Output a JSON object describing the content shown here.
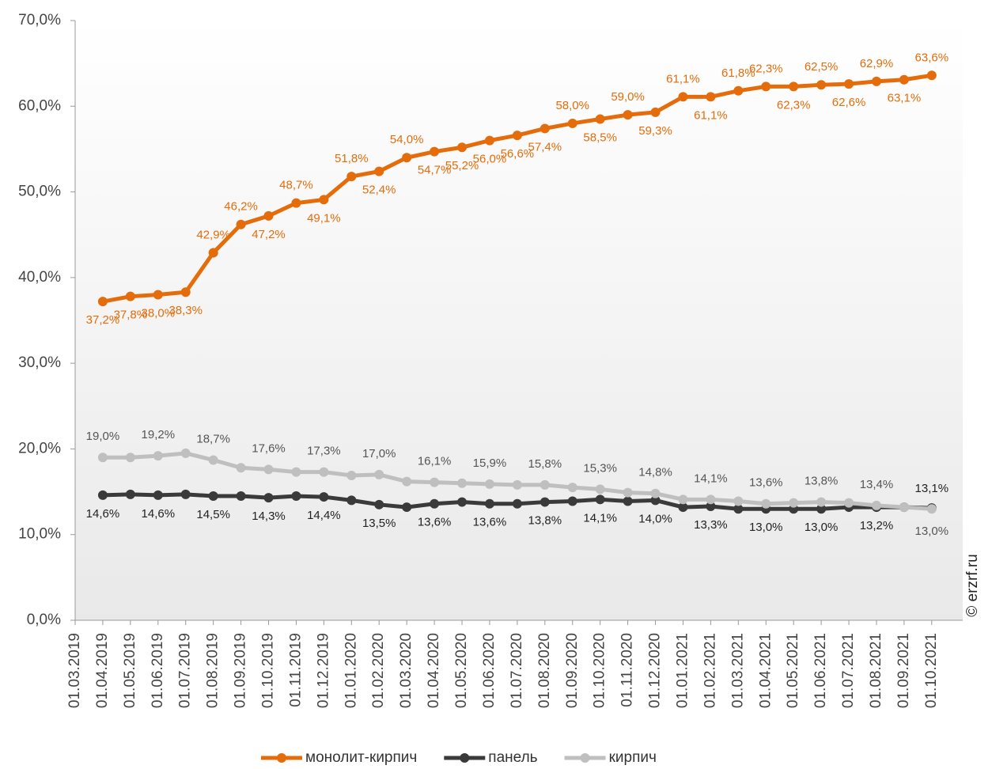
{
  "chart_data": {
    "type": "line",
    "categories": [
      "01.03.2019",
      "01.04.2019",
      "01.05.2019",
      "01.06.2019",
      "01.07.2019",
      "01.08.2019",
      "01.09.2019",
      "01.10.2019",
      "01.11.2019",
      "01.12.2019",
      "01.01.2020",
      "01.02.2020",
      "01.03.2020",
      "01.04.2020",
      "01.05.2020",
      "01.06.2020",
      "01.07.2020",
      "01.08.2020",
      "01.09.2020",
      "01.10.2020",
      "01.11.2020",
      "01.12.2020",
      "01.01.2021",
      "01.02.2021",
      "01.03.2021",
      "01.04.2021",
      "01.05.2021",
      "01.06.2021",
      "01.07.2021",
      "01.08.2021",
      "01.09.2021",
      "01.10.2021"
    ],
    "series": [
      {
        "name": "монолит-кирпич",
        "color": "#e46c0a",
        "values": [
          null,
          37.2,
          37.8,
          38.0,
          38.3,
          42.9,
          46.2,
          47.2,
          48.7,
          49.1,
          51.8,
          52.4,
          54.0,
          54.7,
          55.2,
          56.0,
          56.6,
          57.4,
          58.0,
          58.5,
          59.0,
          59.3,
          61.1,
          61.1,
          61.8,
          62.3,
          62.3,
          62.5,
          62.6,
          62.9,
          63.1,
          63.6
        ],
        "value_labels": [
          null,
          "37,2%",
          "37,8%",
          "38,0%",
          "38,3%",
          "42,9%",
          "46,2%",
          "47,2%",
          "48,7%",
          "49,1%",
          "51,8%",
          "52,4%",
          "54,0%",
          "54,7%",
          "55,2%",
          "56,0%",
          "56,6%",
          "57,4%",
          "58,0%",
          "58,5%",
          "59,0%",
          "59,3%",
          "61,1%",
          "61,1%",
          "61,8%",
          "62,3%",
          "62,3%",
          "62,5%",
          "62,6%",
          "62,9%",
          "63,1%",
          "63,6%"
        ]
      },
      {
        "name": "панель",
        "color": "#3a3a3a",
        "values": [
          null,
          14.6,
          14.7,
          14.6,
          14.7,
          14.5,
          14.5,
          14.3,
          14.5,
          14.4,
          14.0,
          13.5,
          13.2,
          13.6,
          13.8,
          13.6,
          13.6,
          13.8,
          13.9,
          14.1,
          13.9,
          14.0,
          13.2,
          13.3,
          13.0,
          13.0,
          13.0,
          13.0,
          13.2,
          13.2,
          13.2,
          13.1
        ],
        "value_labels": [
          null,
          "14,6%",
          null,
          "14,6%",
          null,
          "14,5%",
          null,
          "14,3%",
          null,
          "14,4%",
          null,
          "13,5%",
          null,
          "13,6%",
          null,
          "13,6%",
          null,
          "13,8%",
          null,
          "14,1%",
          null,
          "14,0%",
          null,
          "13,3%",
          null,
          "13,0%",
          null,
          "13,0%",
          null,
          "13,2%",
          null,
          "13,1%"
        ]
      },
      {
        "name": "кирпич",
        "color": "#bfbfbf",
        "values": [
          null,
          19.0,
          19.0,
          19.2,
          19.5,
          18.7,
          17.8,
          17.6,
          17.3,
          17.3,
          16.9,
          17.0,
          16.2,
          16.1,
          16.0,
          15.9,
          15.8,
          15.8,
          15.5,
          15.3,
          14.9,
          14.8,
          14.1,
          14.1,
          13.9,
          13.6,
          13.7,
          13.8,
          13.7,
          13.4,
          13.2,
          13.0
        ],
        "value_labels": [
          null,
          "19,0%",
          null,
          "19,2%",
          null,
          "18,7%",
          null,
          "17,6%",
          null,
          "17,3%",
          null,
          "17,0%",
          null,
          "16,1%",
          null,
          "15,9%",
          null,
          "15,8%",
          null,
          "15,3%",
          null,
          "14,8%",
          null,
          "14,1%",
          null,
          "13,6%",
          null,
          "13,8%",
          null,
          "13,4%",
          null,
          "13,0%"
        ]
      }
    ],
    "ylim": [
      0,
      70
    ],
    "yticks": [
      {
        "value": 0,
        "label": "0,0%"
      },
      {
        "value": 10,
        "label": "10,0%"
      },
      {
        "value": 20,
        "label": "20,0%"
      },
      {
        "value": 30,
        "label": "30,0%"
      },
      {
        "value": 40,
        "label": "40,0%"
      },
      {
        "value": 50,
        "label": "50,0%"
      },
      {
        "value": 60,
        "label": "60,0%"
      },
      {
        "value": 70,
        "label": "70,0%"
      }
    ],
    "legend": "bottom",
    "source": "© erzrf.ru"
  }
}
